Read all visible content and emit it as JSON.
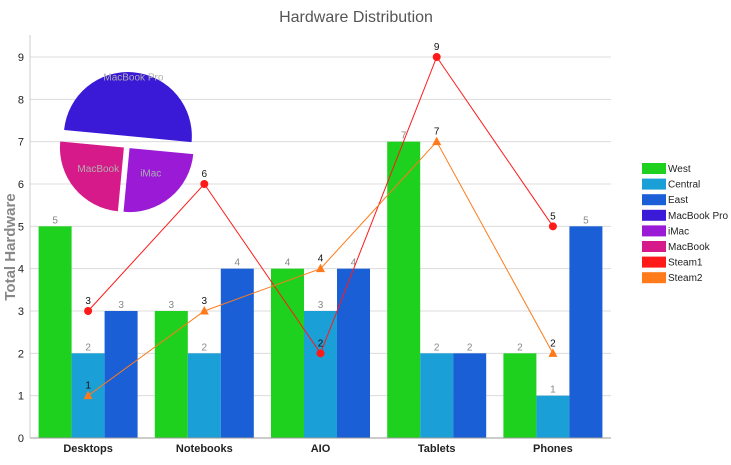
{
  "chart_data": {
    "type": "bar",
    "title": "Hardware Distribution",
    "ylabel": "Total Hardware",
    "xlabel": "",
    "ylim": [
      0,
      9
    ],
    "yticks": [
      0,
      1,
      2,
      3,
      4,
      5,
      6,
      7,
      8,
      9
    ],
    "grid": true,
    "legend_position": "right",
    "categories": [
      "Desktops",
      "Notebooks",
      "AIO",
      "Tablets",
      "Phones"
    ],
    "series": [
      {
        "name": "West",
        "kind": "bar",
        "color": "#1ed11e",
        "values": [
          5,
          3,
          4,
          7,
          2
        ]
      },
      {
        "name": "Central",
        "kind": "bar",
        "color": "#1a9fd6",
        "values": [
          2,
          2,
          3,
          2,
          1
        ]
      },
      {
        "name": "East",
        "kind": "bar",
        "color": "#1a5fd6",
        "values": [
          3,
          4,
          4,
          2,
          5
        ]
      },
      {
        "name": "Steam1",
        "kind": "line",
        "marker": "circle",
        "color": "#ff1a1a",
        "values": [
          3,
          6,
          2,
          9,
          5
        ]
      },
      {
        "name": "Steam2",
        "kind": "line",
        "marker": "triangle",
        "color": "#ff7a1a",
        "values": [
          1,
          3,
          4,
          7,
          2
        ]
      }
    ],
    "pie": {
      "slices": [
        {
          "label": "MacBook Pro",
          "value": 50,
          "color": "#3a1ad6"
        },
        {
          "label": "iMac",
          "value": 25,
          "color": "#9a1ad6"
        },
        {
          "label": "MacBook",
          "value": 25,
          "color": "#d61a8a"
        }
      ]
    },
    "legend": [
      {
        "label": "West",
        "color": "#1ed11e"
      },
      {
        "label": "Central",
        "color": "#1a9fd6"
      },
      {
        "label": "East",
        "color": "#1a5fd6"
      },
      {
        "label": "MacBook Pro",
        "color": "#3a1ad6"
      },
      {
        "label": "iMac",
        "color": "#9a1ad6"
      },
      {
        "label": "MacBook",
        "color": "#d61a8a"
      },
      {
        "label": "Steam1",
        "color": "#ff1a1a"
      },
      {
        "label": "Steam2",
        "color": "#ff7a1a"
      }
    ]
  }
}
